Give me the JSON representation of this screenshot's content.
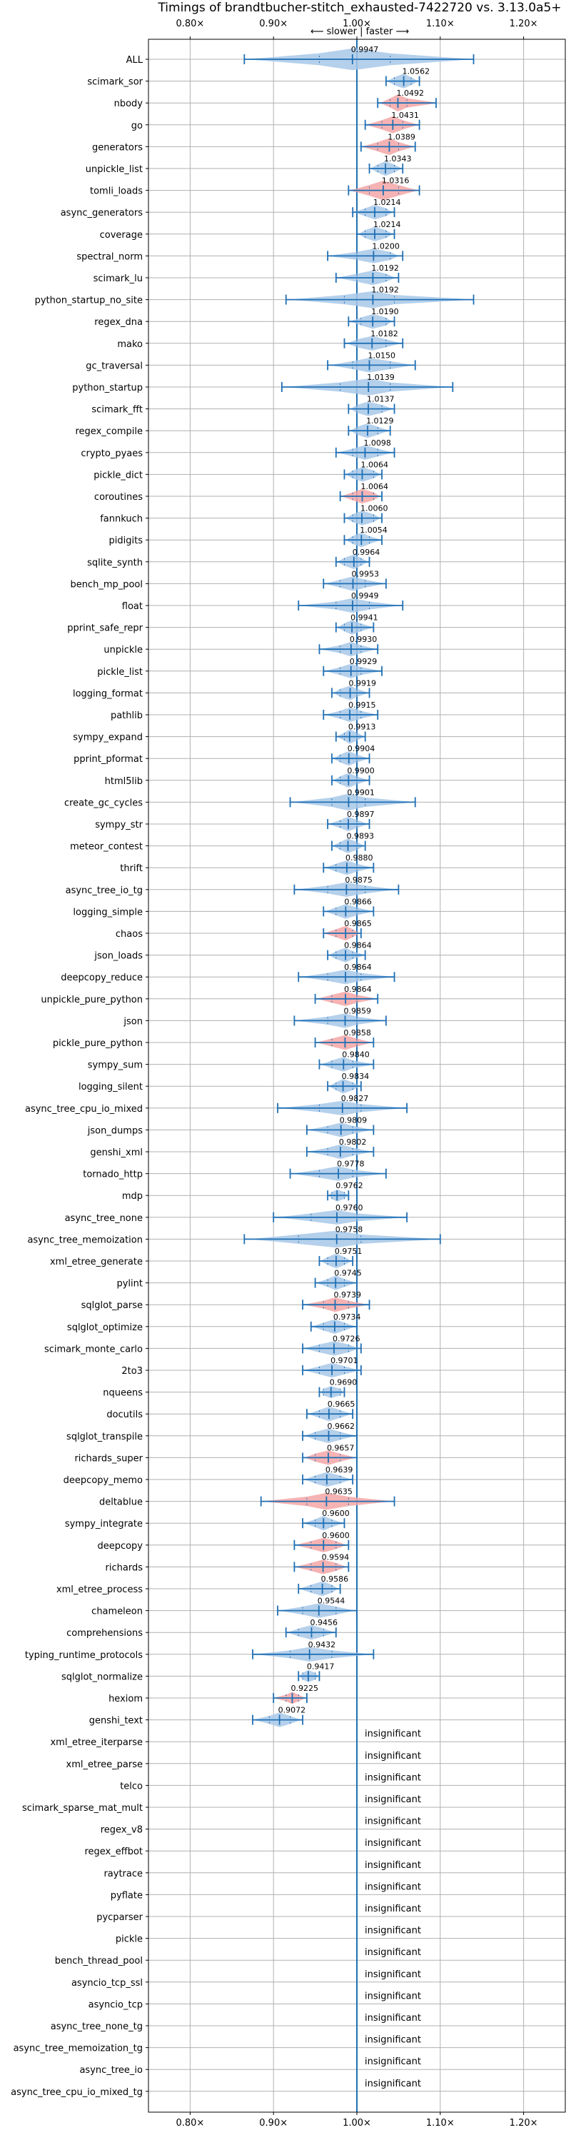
{
  "chart_data": {
    "type": "violin",
    "title": "Timings of brandtbucher-stitch_exhausted-7422720 vs. 3.13.0a5+",
    "direction_label": "⟵ slower | faster ⟶",
    "insignificant_label": "insignificant",
    "xlim": [
      0.75,
      1.25
    ],
    "xticks": [
      0.8,
      0.9,
      1.0,
      1.1,
      1.2
    ],
    "xtick_labels": [
      "0.80×",
      "0.90×",
      "1.00×",
      "1.10×",
      "1.20×"
    ],
    "colors": {
      "faster": "#a8c8e8",
      "slower": "#f4a6a6",
      "line": "#1f6fb4",
      "grid": "#b0b0b0"
    },
    "benchmarks": [
      {
        "name": "ALL",
        "median": 0.9947,
        "label": "0.9947",
        "min": 0.865,
        "max": 1.14,
        "q1": 0.955,
        "q3": 1.04,
        "width": 0.9,
        "color": "faster"
      },
      {
        "name": "scimark_sor",
        "median": 1.0562,
        "label": "1.0562",
        "min": 1.035,
        "max": 1.075,
        "q1": 1.045,
        "q3": 1.065,
        "width": 0.6,
        "color": "faster"
      },
      {
        "name": "nbody",
        "median": 1.0492,
        "label": "1.0492",
        "min": 1.025,
        "max": 1.095,
        "q1": 1.04,
        "q3": 1.06,
        "width": 0.7,
        "color": "slower"
      },
      {
        "name": "go",
        "median": 1.0431,
        "label": "1.0431",
        "min": 1.01,
        "max": 1.075,
        "q1": 1.03,
        "q3": 1.055,
        "width": 0.7,
        "color": "slower"
      },
      {
        "name": "generators",
        "median": 1.0389,
        "label": "1.0389",
        "min": 1.005,
        "max": 1.07,
        "q1": 1.025,
        "q3": 1.05,
        "width": 0.7,
        "color": "slower"
      },
      {
        "name": "unpickle_list",
        "median": 1.0343,
        "label": "1.0343",
        "min": 1.015,
        "max": 1.055,
        "q1": 1.025,
        "q3": 1.045,
        "width": 0.6,
        "color": "faster"
      },
      {
        "name": "tomli_loads",
        "median": 1.0316,
        "label": "1.0316",
        "min": 0.99,
        "max": 1.075,
        "q1": 1.015,
        "q3": 1.05,
        "width": 0.8,
        "color": "slower"
      },
      {
        "name": "async_generators",
        "median": 1.0214,
        "label": "1.0214",
        "min": 0.995,
        "max": 1.045,
        "q1": 1.01,
        "q3": 1.035,
        "width": 0.6,
        "color": "faster"
      },
      {
        "name": "coverage",
        "median": 1.0214,
        "label": "1.0214",
        "min": 1.0,
        "max": 1.045,
        "q1": 1.01,
        "q3": 1.035,
        "width": 0.6,
        "color": "faster"
      },
      {
        "name": "spectral_norm",
        "median": 1.02,
        "label": "1.0200",
        "min": 0.965,
        "max": 1.055,
        "q1": 1.0,
        "q3": 1.04,
        "width": 0.6,
        "color": "faster"
      },
      {
        "name": "scimark_lu",
        "median": 1.0192,
        "label": "1.0192",
        "min": 0.975,
        "max": 1.05,
        "q1": 1.0,
        "q3": 1.035,
        "width": 0.6,
        "color": "faster"
      },
      {
        "name": "python_startup_no_site",
        "median": 1.0192,
        "label": "1.0192",
        "min": 0.915,
        "max": 1.14,
        "q1": 0.985,
        "q3": 1.045,
        "width": 0.7,
        "color": "faster"
      },
      {
        "name": "regex_dna",
        "median": 1.019,
        "label": "1.0190",
        "min": 0.99,
        "max": 1.045,
        "q1": 1.005,
        "q3": 1.035,
        "width": 0.6,
        "color": "faster"
      },
      {
        "name": "mako",
        "median": 1.0182,
        "label": "1.0182",
        "min": 0.985,
        "max": 1.055,
        "q1": 1.0,
        "q3": 1.035,
        "width": 0.6,
        "color": "faster"
      },
      {
        "name": "gc_traversal",
        "median": 1.015,
        "label": "1.0150",
        "min": 0.965,
        "max": 1.07,
        "q1": 0.995,
        "q3": 1.04,
        "width": 0.6,
        "color": "faster"
      },
      {
        "name": "python_startup",
        "median": 1.0139,
        "label": "1.0139",
        "min": 0.91,
        "max": 1.115,
        "q1": 0.98,
        "q3": 1.04,
        "width": 0.7,
        "color": "faster"
      },
      {
        "name": "scimark_fft",
        "median": 1.0137,
        "label": "1.0137",
        "min": 0.99,
        "max": 1.045,
        "q1": 1.0,
        "q3": 1.03,
        "width": 0.6,
        "color": "faster"
      },
      {
        "name": "regex_compile",
        "median": 1.0129,
        "label": "1.0129",
        "min": 0.99,
        "max": 1.04,
        "q1": 1.0,
        "q3": 1.025,
        "width": 0.6,
        "color": "faster"
      },
      {
        "name": "crypto_pyaes",
        "median": 1.0098,
        "label": "1.0098",
        "min": 0.975,
        "max": 1.045,
        "q1": 0.995,
        "q3": 1.025,
        "width": 0.6,
        "color": "faster"
      },
      {
        "name": "pickle_dict",
        "median": 1.0064,
        "label": "1.0064",
        "min": 0.985,
        "max": 1.03,
        "q1": 0.995,
        "q3": 1.02,
        "width": 0.6,
        "color": "faster"
      },
      {
        "name": "coroutines",
        "median": 1.0064,
        "label": "1.0064",
        "min": 0.98,
        "max": 1.03,
        "q1": 0.995,
        "q3": 1.02,
        "width": 0.6,
        "color": "slower"
      },
      {
        "name": "fannkuch",
        "median": 1.006,
        "label": "1.0060",
        "min": 0.985,
        "max": 1.03,
        "q1": 0.995,
        "q3": 1.02,
        "width": 0.6,
        "color": "faster"
      },
      {
        "name": "pidigits",
        "median": 1.0054,
        "label": "1.0054",
        "min": 0.985,
        "max": 1.03,
        "q1": 0.995,
        "q3": 1.015,
        "width": 0.6,
        "color": "faster"
      },
      {
        "name": "sqlite_synth",
        "median": 0.9964,
        "label": "0.9964",
        "min": 0.975,
        "max": 1.015,
        "q1": 0.985,
        "q3": 1.005,
        "width": 0.6,
        "color": "faster"
      },
      {
        "name": "bench_mp_pool",
        "median": 0.9953,
        "label": "0.9953",
        "min": 0.96,
        "max": 1.035,
        "q1": 0.98,
        "q3": 1.01,
        "width": 0.6,
        "color": "faster"
      },
      {
        "name": "float",
        "median": 0.9949,
        "label": "0.9949",
        "min": 0.93,
        "max": 1.055,
        "q1": 0.975,
        "q3": 1.015,
        "width": 0.6,
        "color": "faster"
      },
      {
        "name": "pprint_safe_repr",
        "median": 0.9941,
        "label": "0.9941",
        "min": 0.975,
        "max": 1.02,
        "q1": 0.985,
        "q3": 1.005,
        "width": 0.6,
        "color": "faster"
      },
      {
        "name": "unpickle",
        "median": 0.993,
        "label": "0.9930",
        "min": 0.955,
        "max": 1.025,
        "q1": 0.98,
        "q3": 1.005,
        "width": 0.6,
        "color": "faster"
      },
      {
        "name": "pickle_list",
        "median": 0.9929,
        "label": "0.9929",
        "min": 0.96,
        "max": 1.03,
        "q1": 0.98,
        "q3": 1.005,
        "width": 0.6,
        "color": "faster"
      },
      {
        "name": "logging_format",
        "median": 0.9919,
        "label": "0.9919",
        "min": 0.97,
        "max": 1.015,
        "q1": 0.98,
        "q3": 1.0,
        "width": 0.6,
        "color": "faster"
      },
      {
        "name": "pathlib",
        "median": 0.9915,
        "label": "0.9915",
        "min": 0.96,
        "max": 1.025,
        "q1": 0.98,
        "q3": 1.005,
        "width": 0.6,
        "color": "faster"
      },
      {
        "name": "sympy_expand",
        "median": 0.9913,
        "label": "0.9913",
        "min": 0.975,
        "max": 1.01,
        "q1": 0.985,
        "q3": 1.0,
        "width": 0.6,
        "color": "faster"
      },
      {
        "name": "pprint_pformat",
        "median": 0.9904,
        "label": "0.9904",
        "min": 0.97,
        "max": 1.015,
        "q1": 0.98,
        "q3": 1.0,
        "width": 0.6,
        "color": "faster"
      },
      {
        "name": "html5lib",
        "median": 0.99,
        "label": "0.9900",
        "min": 0.97,
        "max": 1.015,
        "q1": 0.98,
        "q3": 1.0,
        "width": 0.6,
        "color": "faster"
      },
      {
        "name": "create_gc_cycles",
        "median": 0.9901,
        "label": "0.9901",
        "min": 0.92,
        "max": 1.07,
        "q1": 0.97,
        "q3": 1.01,
        "width": 0.7,
        "color": "faster"
      },
      {
        "name": "sympy_str",
        "median": 0.9897,
        "label": "0.9897",
        "min": 0.965,
        "max": 1.015,
        "q1": 0.98,
        "q3": 1.0,
        "width": 0.6,
        "color": "faster"
      },
      {
        "name": "meteor_contest",
        "median": 0.9893,
        "label": "0.9893",
        "min": 0.97,
        "max": 1.01,
        "q1": 0.98,
        "q3": 1.0,
        "width": 0.6,
        "color": "faster"
      },
      {
        "name": "thrift",
        "median": 0.988,
        "label": "0.9880",
        "min": 0.96,
        "max": 1.02,
        "q1": 0.975,
        "q3": 1.0,
        "width": 0.6,
        "color": "faster"
      },
      {
        "name": "async_tree_io_tg",
        "median": 0.9875,
        "label": "0.9875",
        "min": 0.925,
        "max": 1.05,
        "q1": 0.965,
        "q3": 1.01,
        "width": 0.6,
        "color": "faster"
      },
      {
        "name": "logging_simple",
        "median": 0.9866,
        "label": "0.9866",
        "min": 0.96,
        "max": 1.02,
        "q1": 0.975,
        "q3": 1.0,
        "width": 0.6,
        "color": "faster"
      },
      {
        "name": "chaos",
        "median": 0.9865,
        "label": "0.9865",
        "min": 0.96,
        "max": 1.005,
        "q1": 0.975,
        "q3": 0.995,
        "width": 0.6,
        "color": "slower"
      },
      {
        "name": "json_loads",
        "median": 0.9864,
        "label": "0.9864",
        "min": 0.965,
        "max": 1.01,
        "q1": 0.975,
        "q3": 0.995,
        "width": 0.6,
        "color": "faster"
      },
      {
        "name": "deepcopy_reduce",
        "median": 0.9864,
        "label": "0.9864",
        "min": 0.93,
        "max": 1.045,
        "q1": 0.965,
        "q3": 1.005,
        "width": 0.6,
        "color": "faster"
      },
      {
        "name": "unpickle_pure_python",
        "median": 0.9864,
        "label": "0.9864",
        "min": 0.95,
        "max": 1.025,
        "q1": 0.97,
        "q3": 1.0,
        "width": 0.6,
        "color": "slower"
      },
      {
        "name": "json",
        "median": 0.9859,
        "label": "0.9859",
        "min": 0.925,
        "max": 1.035,
        "q1": 0.965,
        "q3": 1.0,
        "width": 0.6,
        "color": "faster"
      },
      {
        "name": "pickle_pure_python",
        "median": 0.9858,
        "label": "0.9858",
        "min": 0.95,
        "max": 1.02,
        "q1": 0.97,
        "q3": 1.0,
        "width": 0.6,
        "color": "slower"
      },
      {
        "name": "sympy_sum",
        "median": 0.984,
        "label": "0.9840",
        "min": 0.955,
        "max": 1.02,
        "q1": 0.97,
        "q3": 0.995,
        "width": 0.6,
        "color": "faster"
      },
      {
        "name": "logging_silent",
        "median": 0.9834,
        "label": "0.9834",
        "min": 0.965,
        "max": 1.005,
        "q1": 0.975,
        "q3": 0.995,
        "width": 0.6,
        "color": "faster"
      },
      {
        "name": "async_tree_cpu_io_mixed",
        "median": 0.9827,
        "label": "0.9827",
        "min": 0.905,
        "max": 1.06,
        "q1": 0.955,
        "q3": 1.005,
        "width": 0.6,
        "color": "faster"
      },
      {
        "name": "json_dumps",
        "median": 0.9809,
        "label": "0.9809",
        "min": 0.94,
        "max": 1.02,
        "q1": 0.965,
        "q3": 0.995,
        "width": 0.6,
        "color": "faster"
      },
      {
        "name": "genshi_xml",
        "median": 0.9802,
        "label": "0.9802",
        "min": 0.94,
        "max": 1.02,
        "q1": 0.965,
        "q3": 0.995,
        "width": 0.6,
        "color": "faster"
      },
      {
        "name": "tornado_http",
        "median": 0.9778,
        "label": "0.9778",
        "min": 0.92,
        "max": 1.035,
        "q1": 0.955,
        "q3": 0.995,
        "width": 0.6,
        "color": "faster"
      },
      {
        "name": "mdp",
        "median": 0.9762,
        "label": "0.9762",
        "min": 0.965,
        "max": 0.99,
        "q1": 0.97,
        "q3": 0.985,
        "width": 0.5,
        "color": "faster"
      },
      {
        "name": "async_tree_none",
        "median": 0.976,
        "label": "0.9760",
        "min": 0.9,
        "max": 1.06,
        "q1": 0.945,
        "q3": 1.0,
        "width": 0.6,
        "color": "faster"
      },
      {
        "name": "async_tree_memoization",
        "median": 0.9758,
        "label": "0.9758",
        "min": 0.865,
        "max": 1.1,
        "q1": 0.93,
        "q3": 1.005,
        "width": 0.7,
        "color": "faster"
      },
      {
        "name": "xml_etree_generate",
        "median": 0.9751,
        "label": "0.9751",
        "min": 0.955,
        "max": 0.995,
        "q1": 0.965,
        "q3": 0.985,
        "width": 0.6,
        "color": "faster"
      },
      {
        "name": "pylint",
        "median": 0.9745,
        "label": "0.9745",
        "min": 0.95,
        "max": 1.0,
        "q1": 0.965,
        "q3": 0.985,
        "width": 0.6,
        "color": "faster"
      },
      {
        "name": "sqlglot_parse",
        "median": 0.9739,
        "label": "0.9739",
        "min": 0.935,
        "max": 1.015,
        "q1": 0.96,
        "q3": 0.99,
        "width": 0.6,
        "color": "slower"
      },
      {
        "name": "sqlglot_optimize",
        "median": 0.9734,
        "label": "0.9734",
        "min": 0.945,
        "max": 1.0,
        "q1": 0.96,
        "q3": 0.985,
        "width": 0.6,
        "color": "faster"
      },
      {
        "name": "scimark_monte_carlo",
        "median": 0.9726,
        "label": "0.9726",
        "min": 0.935,
        "max": 1.005,
        "q1": 0.955,
        "q3": 0.99,
        "width": 0.6,
        "color": "faster"
      },
      {
        "name": "2to3",
        "median": 0.9701,
        "label": "0.9701",
        "min": 0.935,
        "max": 1.005,
        "q1": 0.955,
        "q3": 0.985,
        "width": 0.6,
        "color": "faster"
      },
      {
        "name": "nqueens",
        "median": 0.969,
        "label": "0.9690",
        "min": 0.955,
        "max": 0.985,
        "q1": 0.96,
        "q3": 0.98,
        "width": 0.5,
        "color": "faster"
      },
      {
        "name": "docutils",
        "median": 0.9665,
        "label": "0.9665",
        "min": 0.94,
        "max": 0.995,
        "q1": 0.955,
        "q3": 0.98,
        "width": 0.6,
        "color": "faster"
      },
      {
        "name": "sqlglot_transpile",
        "median": 0.9662,
        "label": "0.9662",
        "min": 0.935,
        "max": 1.0,
        "q1": 0.95,
        "q3": 0.98,
        "width": 0.6,
        "color": "faster"
      },
      {
        "name": "richards_super",
        "median": 0.9657,
        "label": "0.9657",
        "min": 0.935,
        "max": 1.0,
        "q1": 0.95,
        "q3": 0.98,
        "width": 0.6,
        "color": "slower"
      },
      {
        "name": "deepcopy_memo",
        "median": 0.9639,
        "label": "0.9639",
        "min": 0.935,
        "max": 0.995,
        "q1": 0.95,
        "q3": 0.98,
        "width": 0.6,
        "color": "faster"
      },
      {
        "name": "deltablue",
        "median": 0.9635,
        "label": "0.9635",
        "min": 0.885,
        "max": 1.045,
        "q1": 0.94,
        "q3": 0.99,
        "width": 0.7,
        "color": "slower"
      },
      {
        "name": "sympy_integrate",
        "median": 0.96,
        "label": "0.9600",
        "min": 0.935,
        "max": 0.985,
        "q1": 0.95,
        "q3": 0.97,
        "width": 0.6,
        "color": "faster"
      },
      {
        "name": "deepcopy",
        "median": 0.96,
        "label": "0.9600",
        "min": 0.925,
        "max": 0.99,
        "q1": 0.945,
        "q3": 0.975,
        "width": 0.6,
        "color": "slower"
      },
      {
        "name": "richards",
        "median": 0.9594,
        "label": "0.9594",
        "min": 0.925,
        "max": 0.99,
        "q1": 0.945,
        "q3": 0.975,
        "width": 0.6,
        "color": "slower"
      },
      {
        "name": "xml_etree_process",
        "median": 0.9586,
        "label": "0.9586",
        "min": 0.93,
        "max": 0.98,
        "q1": 0.945,
        "q3": 0.97,
        "width": 0.6,
        "color": "faster"
      },
      {
        "name": "chameleon",
        "median": 0.9544,
        "label": "0.9544",
        "min": 0.905,
        "max": 1.0,
        "q1": 0.935,
        "q3": 0.975,
        "width": 0.6,
        "color": "faster"
      },
      {
        "name": "comprehensions",
        "median": 0.9456,
        "label": "0.9456",
        "min": 0.915,
        "max": 0.975,
        "q1": 0.93,
        "q3": 0.96,
        "width": 0.6,
        "color": "faster"
      },
      {
        "name": "typing_runtime_protocols",
        "median": 0.9432,
        "label": "0.9432",
        "min": 0.875,
        "max": 1.02,
        "q1": 0.92,
        "q3": 0.97,
        "width": 0.6,
        "color": "faster"
      },
      {
        "name": "sqlglot_normalize",
        "median": 0.9417,
        "label": "0.9417",
        "min": 0.93,
        "max": 0.955,
        "q1": 0.935,
        "q3": 0.95,
        "width": 0.5,
        "color": "faster"
      },
      {
        "name": "hexiom",
        "median": 0.9225,
        "label": "0.9225",
        "min": 0.9,
        "max": 0.94,
        "q1": 0.915,
        "q3": 0.93,
        "width": 0.5,
        "color": "slower"
      },
      {
        "name": "genshi_text",
        "median": 0.9072,
        "label": "0.9072",
        "min": 0.875,
        "max": 0.935,
        "q1": 0.895,
        "q3": 0.92,
        "width": 0.6,
        "color": "faster"
      },
      {
        "name": "xml_etree_iterparse",
        "insignificant": true
      },
      {
        "name": "xml_etree_parse",
        "insignificant": true
      },
      {
        "name": "telco",
        "insignificant": true
      },
      {
        "name": "scimark_sparse_mat_mult",
        "insignificant": true
      },
      {
        "name": "regex_v8",
        "insignificant": true
      },
      {
        "name": "regex_effbot",
        "insignificant": true
      },
      {
        "name": "raytrace",
        "insignificant": true
      },
      {
        "name": "pyflate",
        "insignificant": true
      },
      {
        "name": "pycparser",
        "insignificant": true
      },
      {
        "name": "pickle",
        "insignificant": true
      },
      {
        "name": "bench_thread_pool",
        "insignificant": true
      },
      {
        "name": "asyncio_tcp_ssl",
        "insignificant": true
      },
      {
        "name": "asyncio_tcp",
        "insignificant": true
      },
      {
        "name": "async_tree_none_tg",
        "insignificant": true
      },
      {
        "name": "async_tree_memoization_tg",
        "insignificant": true
      },
      {
        "name": "async_tree_io",
        "insignificant": true
      },
      {
        "name": "async_tree_cpu_io_mixed_tg",
        "insignificant": true
      }
    ]
  }
}
